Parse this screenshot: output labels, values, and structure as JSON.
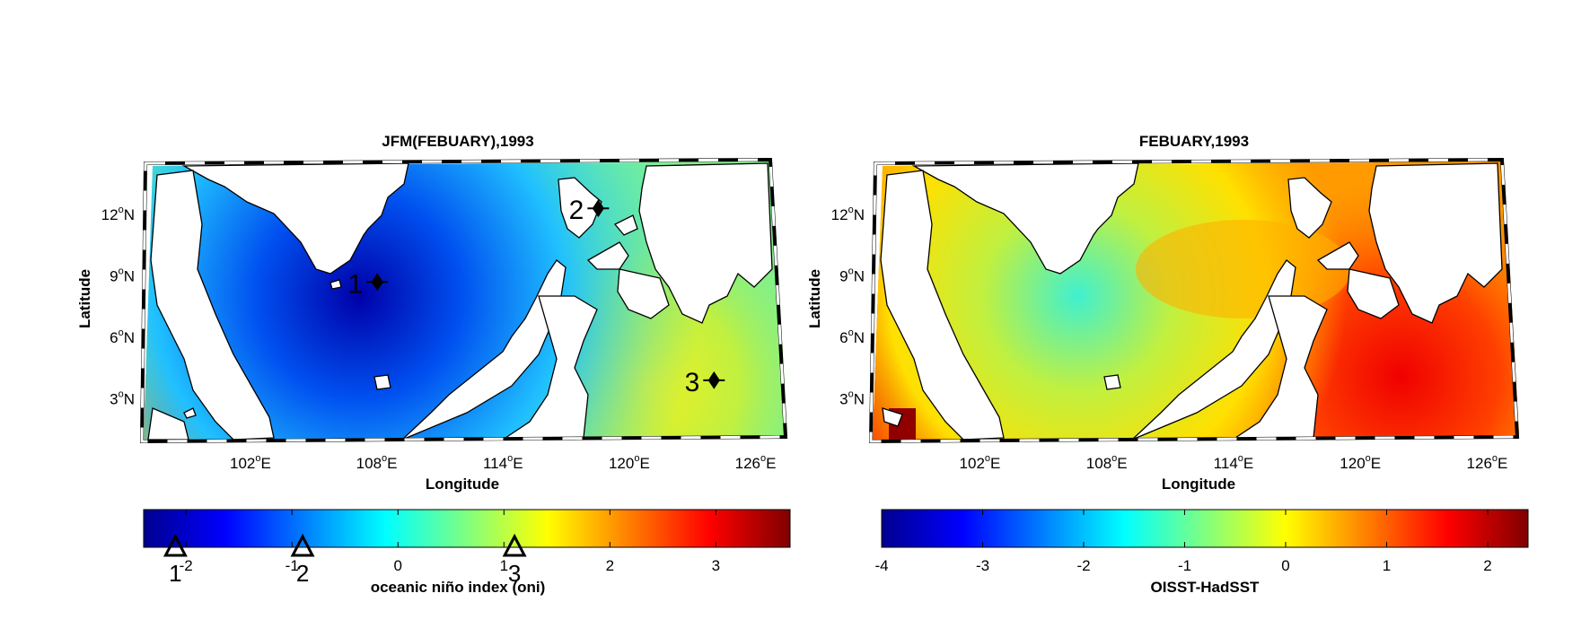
{
  "panels": [
    {
      "id": "left",
      "title": "JFM(FEBUARY),1993",
      "xlabel": "Longitude",
      "ylabel": "Latitude",
      "lon_ticks": [
        "102",
        "108",
        "114",
        "120",
        "126"
      ],
      "lat_ticks": [
        "12",
        "9",
        "6",
        "3"
      ],
      "colorbar_label": "oceanic niño index (oni)",
      "colorbar_ticks": [
        "-2",
        "-1",
        "0",
        "1",
        "2",
        "3"
      ],
      "colorbar_range": [
        -2.4,
        3.7
      ],
      "colormap": "jet",
      "station_markers": [
        {
          "label": "1",
          "lon": 107.6,
          "lat": 8.7
        },
        {
          "label": "2",
          "lon": 118.1,
          "lat": 12.3
        },
        {
          "label": "3",
          "lon": 123.6,
          "lat": 3.9
        }
      ],
      "colorbar_pointers": [
        {
          "label": "1",
          "value": -2.1
        },
        {
          "label": "2",
          "value": -0.9
        },
        {
          "label": "3",
          "value": 1.1
        }
      ]
    },
    {
      "id": "right",
      "title": "FEBUARY,1993",
      "xlabel": "Longitude",
      "ylabel": "Latitude",
      "lon_ticks": [
        "102",
        "108",
        "114",
        "120",
        "126"
      ],
      "lat_ticks": [
        "12",
        "9",
        "6",
        "3"
      ],
      "colorbar_label": "OISST-HadSST",
      "colorbar_ticks": [
        "-4",
        "-3",
        "-2",
        "-1",
        "0",
        "1",
        "2"
      ],
      "colorbar_range": [
        -4.0,
        2.4
      ],
      "colormap": "jet"
    }
  ],
  "lon_suffix": "E",
  "lat_suffix": "N",
  "degree_symbol": "o"
}
